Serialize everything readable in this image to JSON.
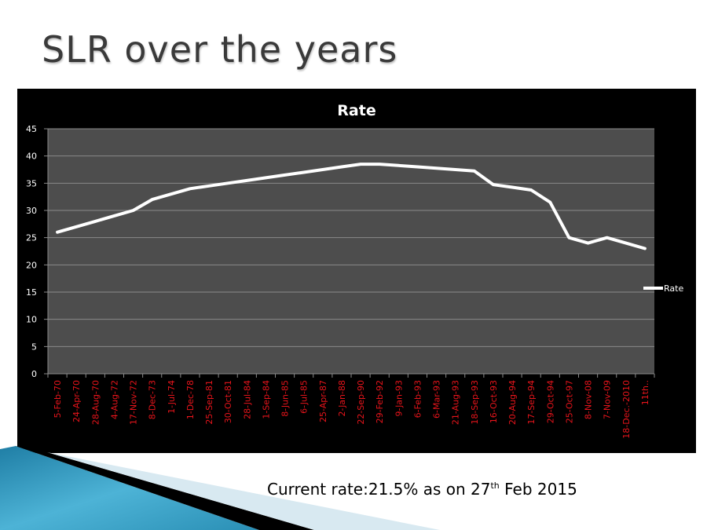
{
  "slide": {
    "title": "SLR over the years",
    "caption_prefix": "Current rate:21.5% as on 27",
    "caption_sup": "th",
    "caption_suffix": " Feb 2015"
  },
  "colors": {
    "chart_bg": "#000000",
    "plot_bg": "#4d4d4d",
    "gridline": "#8a8a8a",
    "line": "#ffffff",
    "xtick_label": "#e8141b",
    "ytick_label": "#ffffff",
    "deco_blue": "#2a8fb5"
  },
  "chart_data": {
    "type": "line",
    "title": "Rate",
    "xlabel": "",
    "ylabel": "",
    "ylim": [
      0,
      45
    ],
    "yticks": [
      0,
      5,
      10,
      15,
      20,
      25,
      30,
      35,
      40,
      45
    ],
    "grid": true,
    "legend": {
      "position": "right",
      "entries": [
        "Rate"
      ]
    },
    "categories": [
      "5-Feb-70",
      "24-Apr-70",
      "28-Aug-70",
      "4-Aug-72",
      "17-Nov-72",
      "8-Dec-73",
      "1-Jul-74",
      "1-Dec-78",
      "25-Sep-81",
      "30-Oct-81",
      "28-Jul-84",
      "1-Sep-84",
      "8-Jun-85",
      "6-Jul-85",
      "25-Apr-87",
      "2-Jan-88",
      "22-Sep-90",
      "29-Feb-92",
      "9-Jan-93",
      "6-Feb-93",
      "6-Mar-93",
      "21-Aug-93",
      "18-Sep-93",
      "16-Oct-93",
      "20-Aug-94",
      "17-Sep-94",
      "29-Oct-94",
      "25-Oct-97",
      "8-Nov-08",
      "7-Nov-09",
      "18-Dec.-2010",
      "11th.."
    ],
    "series": [
      {
        "name": "Rate",
        "values": [
          26,
          27,
          28,
          29,
          30,
          32,
          33,
          34,
          34.5,
          35,
          35.5,
          36,
          36.5,
          37,
          37.5,
          38,
          38.5,
          38.5,
          38.25,
          38,
          37.75,
          37.5,
          37.25,
          34.75,
          34.25,
          33.75,
          31.5,
          25,
          24,
          25,
          24,
          23
        ]
      }
    ]
  }
}
